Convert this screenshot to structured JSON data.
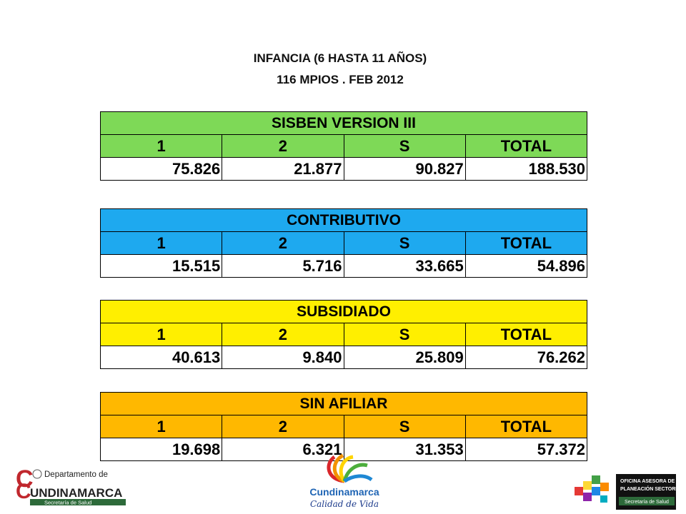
{
  "title": {
    "line1": "INFANCIA (6 HASTA 11 AÑOS)",
    "line2": "116 MPIOS . FEB 2012"
  },
  "columns": [
    "1",
    "2",
    "S",
    "TOTAL"
  ],
  "blocks": [
    {
      "header": "SISBEN VERSION III",
      "color": "#7ed957",
      "values": [
        "75.826",
        "21.877",
        "90.827",
        "188.530"
      ]
    },
    {
      "header": "CONTRIBUTIVO",
      "color": "#1ea9ef",
      "values": [
        "15.515",
        "5.716",
        "33.665",
        "54.896"
      ]
    },
    {
      "header": "SUBSIDIADO",
      "color": "#ffef00",
      "values": [
        "40.613",
        "9.840",
        "25.809",
        "76.262"
      ]
    },
    {
      "header": "SIN AFILIAR",
      "color": "#ffb800",
      "values": [
        "19.698",
        "6.321",
        "31.353",
        "57.372"
      ]
    }
  ],
  "logos": {
    "left": {
      "initial1": "C",
      "initial2": "C",
      "name1": "Departamento de",
      "name2": "UNDINAMARCA",
      "sub": "Secretaría de Salud"
    },
    "middle": {
      "name": "Cundinamarca",
      "tagline": "Calidad de Vida"
    },
    "right": {
      "line1": "OFICINA ASESORA DE",
      "line2": "PLANEACIÓN SECTORIAL",
      "sub": "Secretaría de Salud"
    }
  }
}
